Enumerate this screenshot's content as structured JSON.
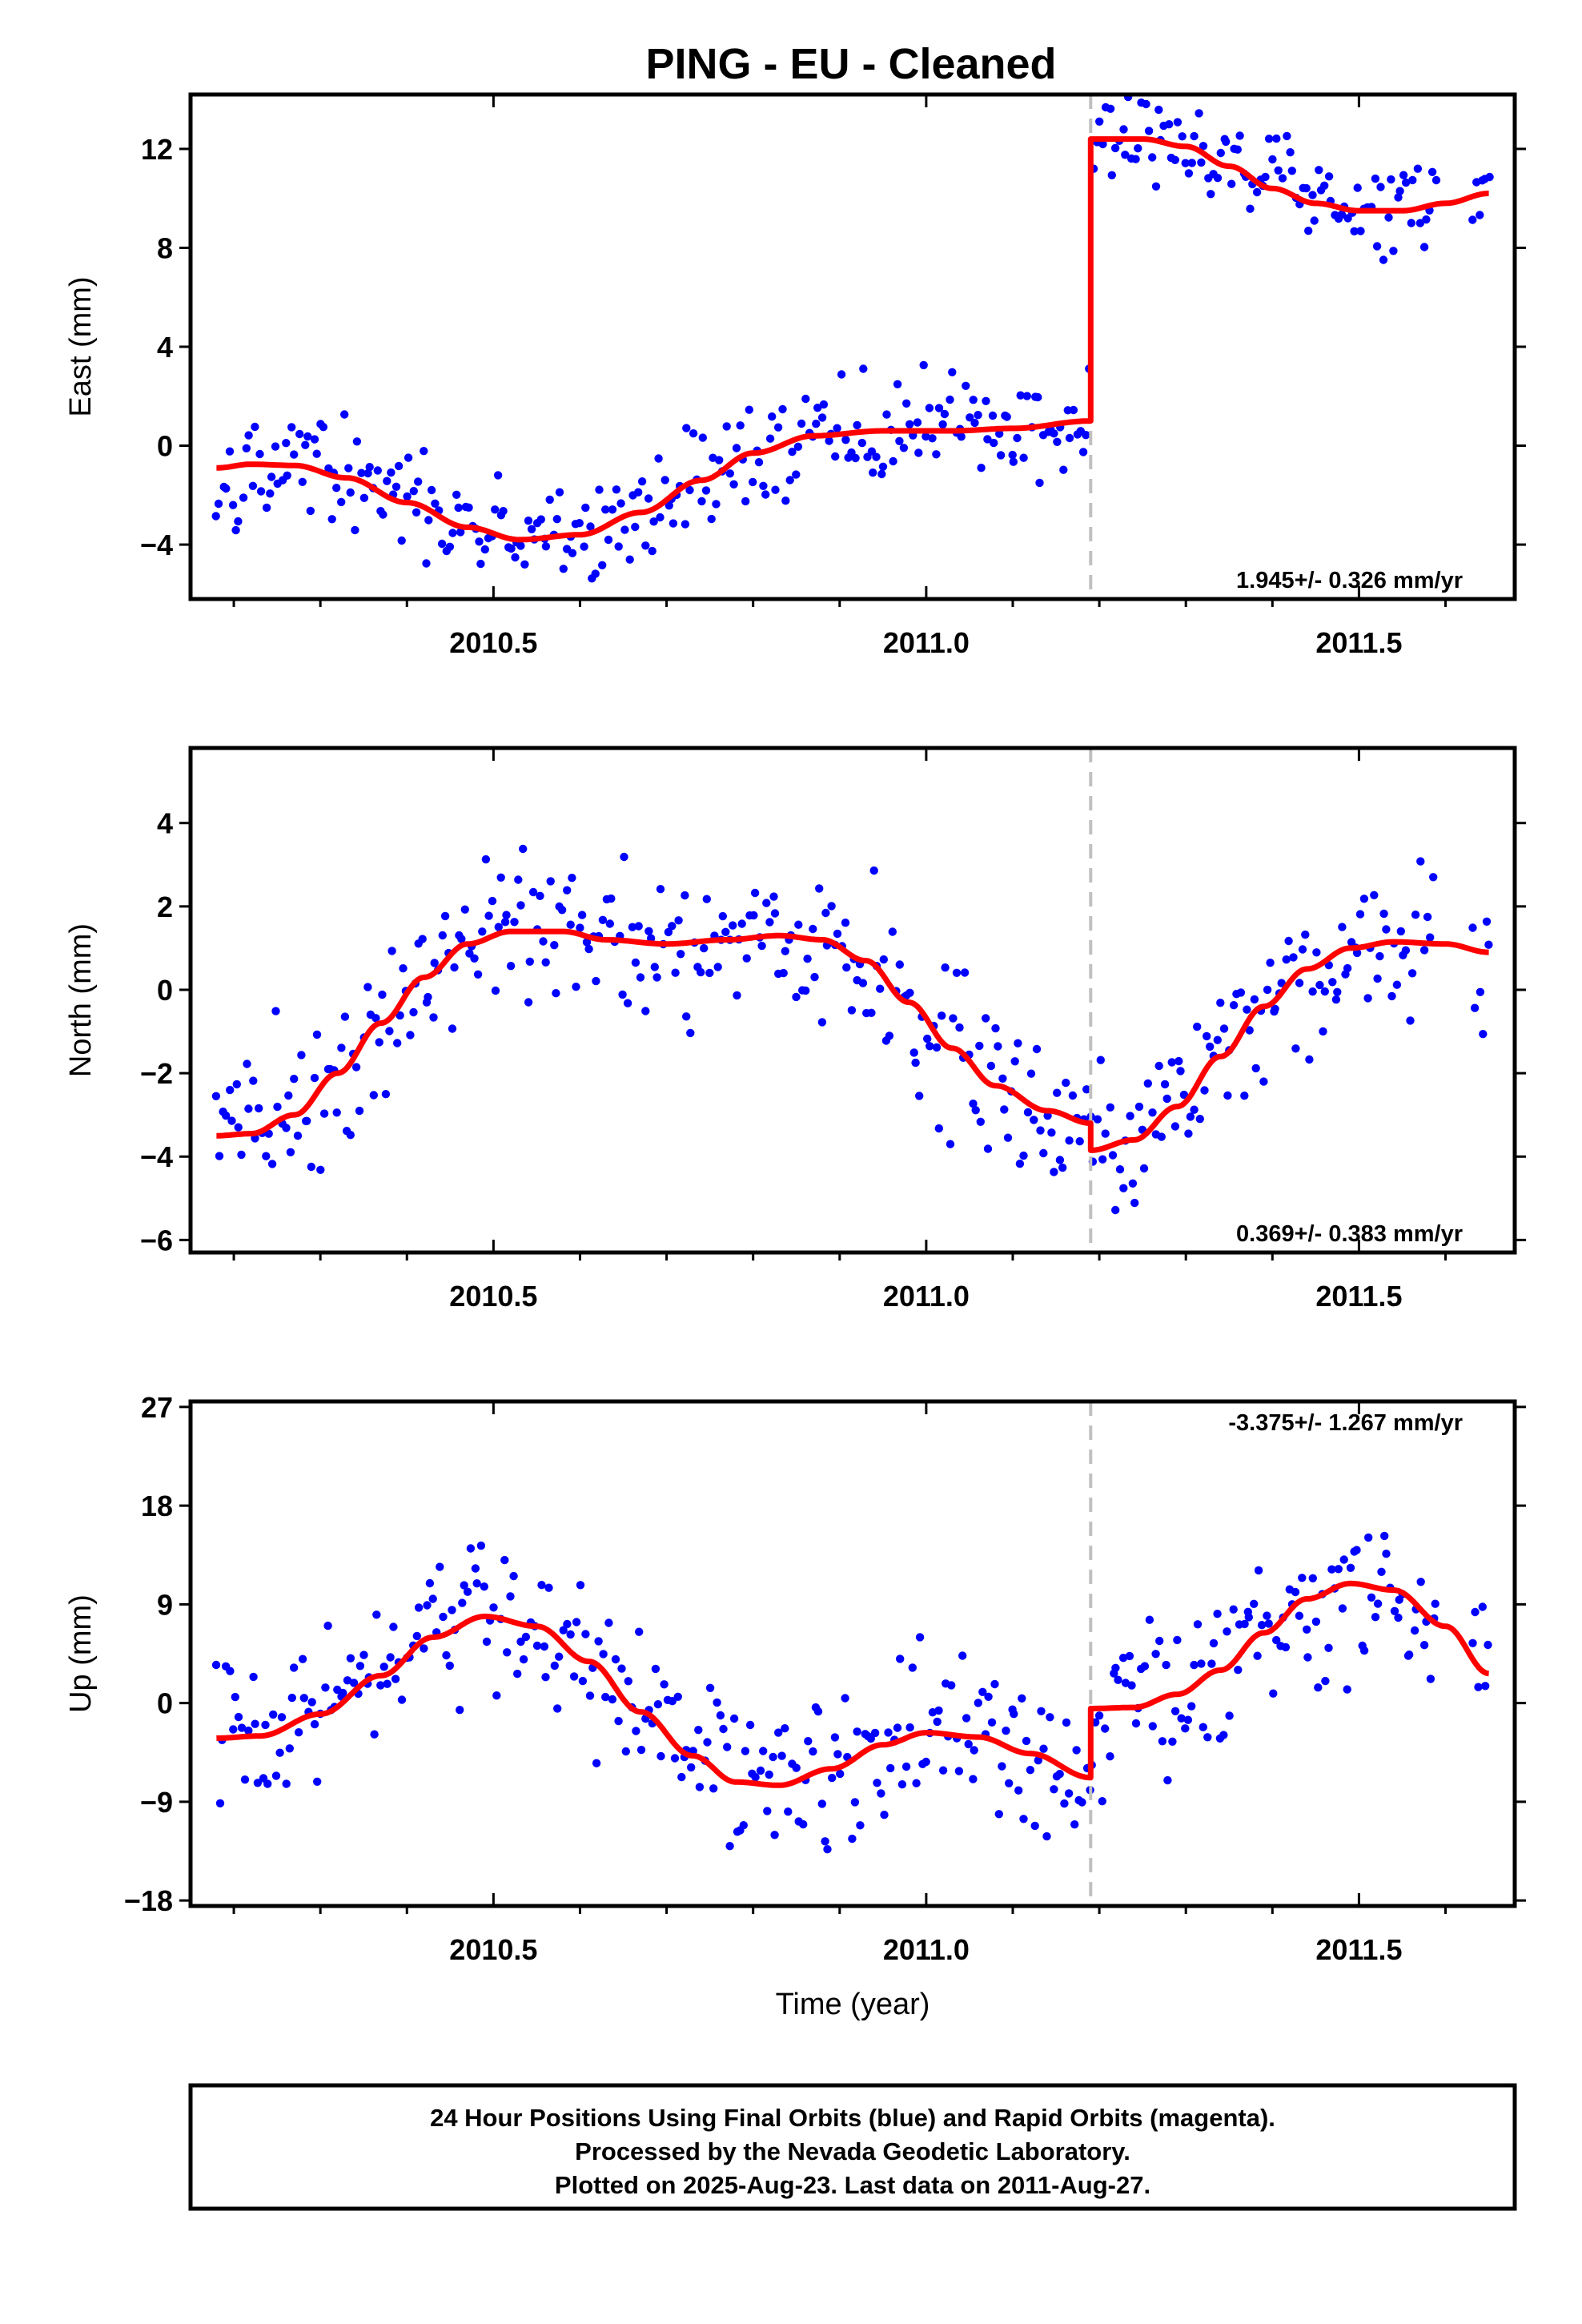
{
  "title": "PING  - EU - Cleaned",
  "footer": {
    "lines": [
      "24 Hour Positions Using Final Orbits (blue) and Rapid Orbits (magenta).",
      "Processed by the Nevada Geodetic Laboratory.",
      "Plotted on 2025-Aug-23. Last data on 2011-Aug-27."
    ]
  },
  "colors": {
    "points": "#0000ff",
    "model": "#ff0000",
    "offset_line": "#c0c0c0",
    "frame": "#000000"
  },
  "chart_data": [
    {
      "type": "scatter",
      "name": "east",
      "ylabel": "East (mm)",
      "xlabel": "",
      "xlim": [
        2010.15,
        2011.68
      ],
      "ylim": [
        -6.2,
        14.2
      ],
      "xticks": [
        2010.5,
        2011.0,
        2011.5
      ],
      "xtick_labels": [
        "2010.5",
        "2011.0",
        "2011.5"
      ],
      "yticks": [
        -4,
        0,
        4,
        8,
        12
      ],
      "ytick_labels": [
        "−4",
        "0",
        "4",
        "8",
        "12"
      ],
      "rate_text": "1.945+/- 0.326 mm/yr",
      "rate_position": "bottom-right",
      "offset_epoch": 2011.19,
      "points": {
        "x_start": 2010.18,
        "x_end": 2011.65,
        "count": 390,
        "noise": 1.05,
        "gaps": [
          [
            2011.59,
            2011.63
          ]
        ]
      },
      "model": {
        "before": [
          [
            2010.18,
            -0.9
          ],
          [
            2010.22,
            -0.75
          ],
          [
            2010.27,
            -0.8
          ],
          [
            2010.33,
            -1.3
          ],
          [
            2010.4,
            -2.3
          ],
          [
            2010.47,
            -3.3
          ],
          [
            2010.53,
            -3.8
          ],
          [
            2010.6,
            -3.6
          ],
          [
            2010.67,
            -2.7
          ],
          [
            2010.74,
            -1.4
          ],
          [
            2010.8,
            -0.3
          ],
          [
            2010.87,
            0.4
          ],
          [
            2010.95,
            0.6
          ],
          [
            2011.03,
            0.6
          ],
          [
            2011.1,
            0.7
          ],
          [
            2011.19,
            1.0
          ]
        ],
        "after": [
          [
            2011.19,
            12.4
          ],
          [
            2011.25,
            12.4
          ],
          [
            2011.3,
            12.1
          ],
          [
            2011.35,
            11.3
          ],
          [
            2011.4,
            10.4
          ],
          [
            2011.45,
            9.8
          ],
          [
            2011.5,
            9.5
          ],
          [
            2011.55,
            9.5
          ],
          [
            2011.6,
            9.8
          ],
          [
            2011.65,
            10.2
          ]
        ]
      }
    },
    {
      "type": "scatter",
      "name": "north",
      "ylabel": "North (mm)",
      "xlabel": "",
      "xlim": [
        2010.15,
        2011.68
      ],
      "ylim": [
        -6.3,
        5.8
      ],
      "xticks": [
        2010.5,
        2011.0,
        2011.5
      ],
      "xtick_labels": [
        "2010.5",
        "2011.0",
        "2011.5"
      ],
      "yticks": [
        -6,
        -4,
        -2,
        0,
        2,
        4
      ],
      "ytick_labels": [
        "−6",
        "−4",
        "−2",
        "0",
        "2",
        "4"
      ],
      "rate_text": "0.369+/- 0.383 mm/yr",
      "rate_position": "bottom-right",
      "offset_epoch": 2011.19,
      "points": {
        "x_start": 2010.18,
        "x_end": 2011.65,
        "count": 390,
        "noise": 0.95,
        "gaps": [
          [
            2011.59,
            2011.63
          ]
        ]
      },
      "model": {
        "before": [
          [
            2010.18,
            -3.5
          ],
          [
            2010.22,
            -3.45
          ],
          [
            2010.27,
            -3.0
          ],
          [
            2010.32,
            -2.0
          ],
          [
            2010.37,
            -0.8
          ],
          [
            2010.42,
            0.3
          ],
          [
            2010.47,
            1.1
          ],
          [
            2010.52,
            1.4
          ],
          [
            2010.58,
            1.4
          ],
          [
            2010.63,
            1.2
          ],
          [
            2010.7,
            1.1
          ],
          [
            2010.77,
            1.2
          ],
          [
            2010.83,
            1.3
          ],
          [
            2010.88,
            1.2
          ],
          [
            2010.93,
            0.7
          ],
          [
            2010.98,
            -0.3
          ],
          [
            2011.03,
            -1.4
          ],
          [
            2011.08,
            -2.3
          ],
          [
            2011.14,
            -2.9
          ],
          [
            2011.19,
            -3.2
          ]
        ],
        "after": [
          [
            2011.19,
            -3.85
          ],
          [
            2011.24,
            -3.6
          ],
          [
            2011.29,
            -2.8
          ],
          [
            2011.34,
            -1.6
          ],
          [
            2011.39,
            -0.4
          ],
          [
            2011.44,
            0.5
          ],
          [
            2011.49,
            1.0
          ],
          [
            2011.54,
            1.15
          ],
          [
            2011.6,
            1.1
          ],
          [
            2011.65,
            0.9
          ]
        ]
      }
    },
    {
      "type": "scatter",
      "name": "up",
      "ylabel": "Up (mm)",
      "xlabel": "Time (year)",
      "xlim": [
        2010.15,
        2011.68
      ],
      "ylim": [
        -18.5,
        27.5
      ],
      "xticks": [
        2010.5,
        2011.0,
        2011.5
      ],
      "xtick_labels": [
        "2010.5",
        "2011.0",
        "2011.5"
      ],
      "yticks": [
        -18,
        -9,
        0,
        9,
        18,
        27
      ],
      "ytick_labels": [
        "−18",
        "−9",
        "0",
        "9",
        "18",
        "27"
      ],
      "rate_text": "-3.375+/- 1.267 mm/yr",
      "rate_position": "top-right",
      "offset_epoch": 2011.19,
      "points": {
        "x_start": 2010.18,
        "x_end": 2011.65,
        "count": 390,
        "noise": 3.6,
        "gaps": [
          [
            2011.59,
            2011.63
          ]
        ]
      },
      "model": {
        "before": [
          [
            2010.18,
            -3.2
          ],
          [
            2010.23,
            -3.0
          ],
          [
            2010.3,
            -1.0
          ],
          [
            2010.37,
            2.5
          ],
          [
            2010.43,
            6.0
          ],
          [
            2010.49,
            7.9
          ],
          [
            2010.55,
            7.0
          ],
          [
            2010.61,
            3.8
          ],
          [
            2010.67,
            -0.8
          ],
          [
            2010.73,
            -4.8
          ],
          [
            2010.78,
            -7.2
          ],
          [
            2010.83,
            -7.5
          ],
          [
            2010.89,
            -6.0
          ],
          [
            2010.95,
            -3.8
          ],
          [
            2011.0,
            -2.7
          ],
          [
            2011.06,
            -3.1
          ],
          [
            2011.12,
            -4.6
          ],
          [
            2011.19,
            -6.8
          ]
        ],
        "after": [
          [
            2011.19,
            -0.5
          ],
          [
            2011.24,
            -0.4
          ],
          [
            2011.29,
            0.8
          ],
          [
            2011.34,
            3.0
          ],
          [
            2011.39,
            6.4
          ],
          [
            2011.44,
            9.5
          ],
          [
            2011.49,
            10.9
          ],
          [
            2011.54,
            10.3
          ],
          [
            2011.6,
            7.0
          ],
          [
            2011.65,
            2.7
          ]
        ]
      }
    }
  ]
}
